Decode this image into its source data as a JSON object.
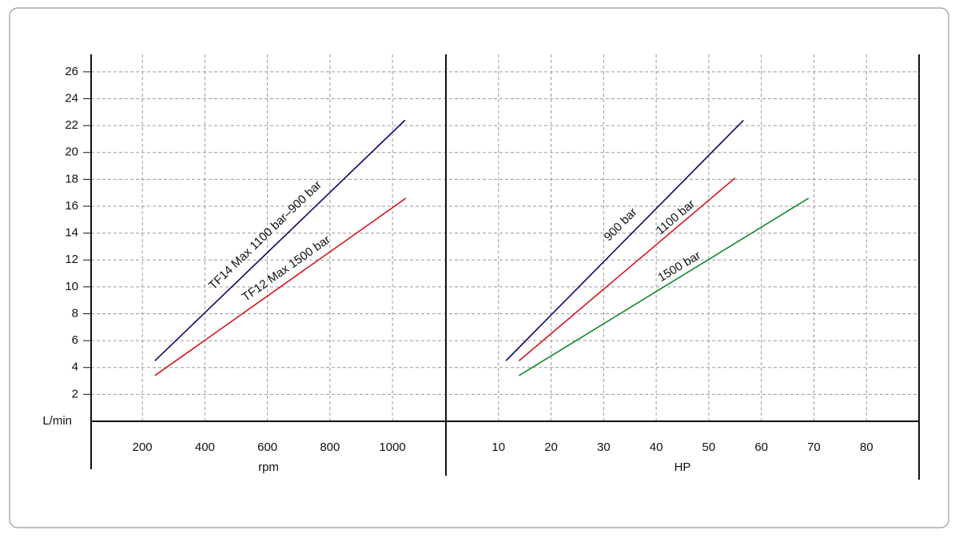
{
  "chart_data": [
    {
      "type": "line",
      "x_label": "rpm",
      "y_label": "L/min",
      "xlim": [
        36,
        1171
      ],
      "xticks": [
        200,
        400,
        600,
        800,
        1000
      ],
      "ylim": [
        0,
        27.3
      ],
      "yticks": [
        2,
        4,
        6,
        8,
        10,
        12,
        14,
        16,
        18,
        20,
        22,
        24,
        26
      ],
      "grid": true,
      "series": [
        {
          "name": "TF14 Max 1100 bar–900 bar",
          "color": "#0a0a6e",
          "x": [
            240,
            1040
          ],
          "values": [
            4.5,
            22.4
          ]
        },
        {
          "name": "TF12 Max 1500 bar",
          "color": "#d7141e",
          "x": [
            240,
            1043
          ],
          "values": [
            3.4,
            16.6
          ]
        }
      ]
    },
    {
      "type": "line",
      "x_label": "HP",
      "xlim": [
        0,
        90
      ],
      "xticks": [
        10,
        20,
        30,
        40,
        50,
        60,
        70,
        80
      ],
      "ylim": [
        0,
        27.3
      ],
      "grid": true,
      "series": [
        {
          "name": "900 bar",
          "color": "#0a0a6e",
          "x": [
            11.4,
            56.6
          ],
          "values": [
            4.5,
            22.4
          ]
        },
        {
          "name": "1100 bar",
          "color": "#d7141e",
          "x": [
            13.9,
            55.0
          ],
          "values": [
            4.5,
            18.1
          ]
        },
        {
          "name": "1500 bar",
          "color": "#12882e",
          "x": [
            13.9,
            69.0
          ],
          "values": [
            3.4,
            16.6
          ]
        }
      ]
    }
  ]
}
